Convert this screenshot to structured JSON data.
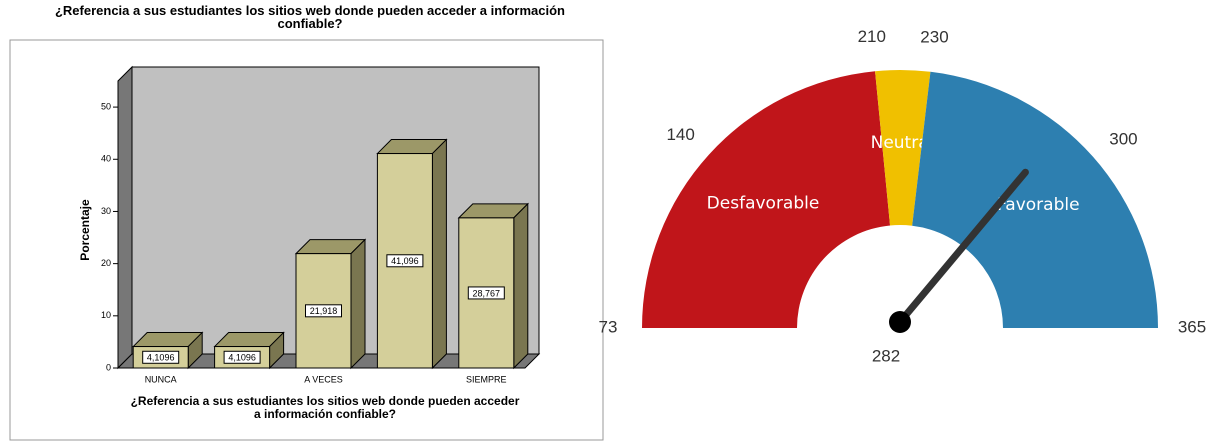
{
  "chart_data": [
    {
      "type": "bar3d",
      "title": "¿Referencia a sus estudiantes los sitios web donde pueden acceder  a información confiable?",
      "categories": [
        "NUNCA",
        null,
        "A VECES",
        null,
        "SIEMPRE"
      ],
      "values": [
        4.1096,
        4.1096,
        21.918,
        41.096,
        28.767
      ],
      "value_labels": [
        "4,1096",
        "4,1096",
        "21,918",
        "41,096",
        "28,767"
      ],
      "y_label": "Porcentaje",
      "x_label": "¿Referencia a sus estudiantes los sitios web donde pueden acceder  a información confiable?",
      "ylim": [
        0,
        55
      ],
      "yticks": [
        0,
        10,
        20,
        30,
        40,
        50
      ],
      "color": "#d4cf9a"
    },
    {
      "type": "gauge",
      "min": 73,
      "max": 365,
      "value": 282,
      "ticks": [
        73,
        140,
        210,
        230,
        300,
        365
      ],
      "bands": [
        {
          "name": "Desfavorable",
          "color": "#c0151a",
          "from": 73,
          "to": 210
        },
        {
          "name": "Neutral",
          "color": "#f0c000",
          "from": 210,
          "to": 230
        },
        {
          "name": "Favorable",
          "color": "#2d7fb0",
          "from": 230,
          "to": 365
        }
      ]
    }
  ]
}
